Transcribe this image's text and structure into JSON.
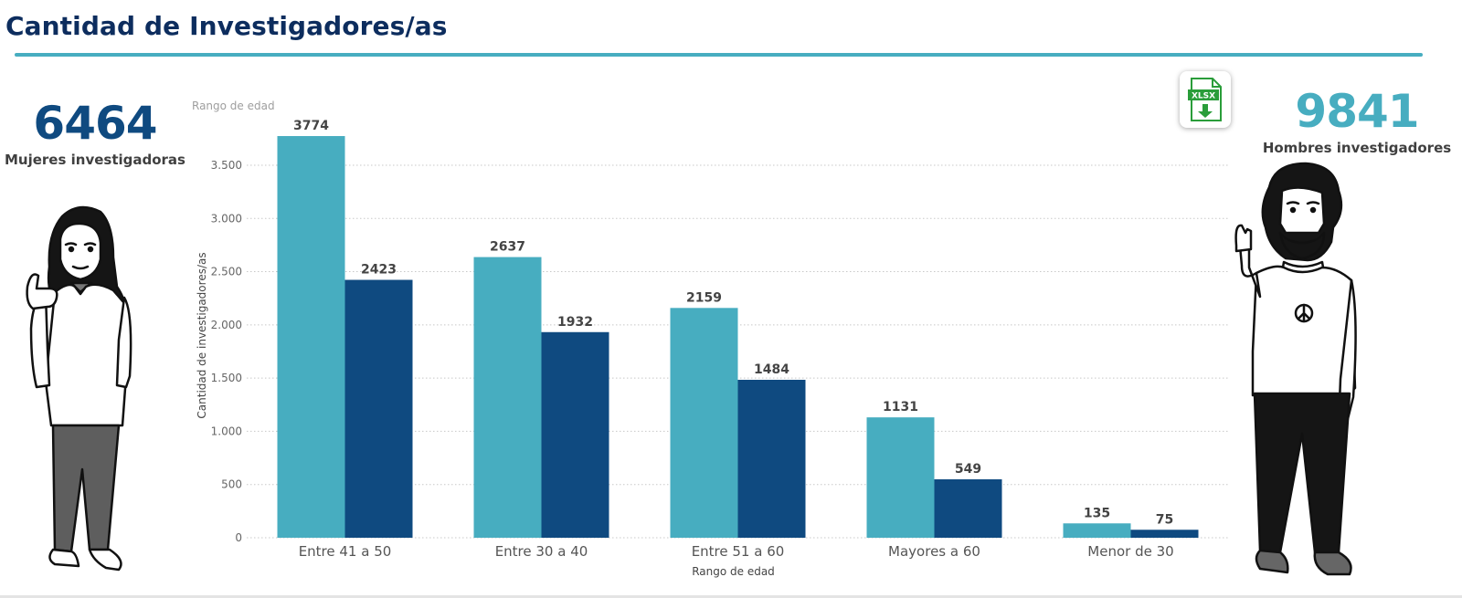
{
  "header": {
    "title": "Cantidad de Investigadores/as"
  },
  "kpis": {
    "women": {
      "value": "6464",
      "label": "Mujeres investigadoras"
    },
    "men": {
      "value": "9841",
      "label": "Hombres investigadores"
    }
  },
  "export_button": {
    "text": "XLSX",
    "icon": "xlsx-download-icon"
  },
  "chart_data": {
    "type": "bar",
    "legend_title": "Rango de edad",
    "xlabel": "Rango de edad",
    "ylabel": "Cantidad de investigadores/as",
    "categories": [
      "Entre 41 a 50",
      "Entre 30 a 40",
      "Entre 51 a 60",
      "Mayores a 60",
      "Menor de 30"
    ],
    "series": [
      {
        "color": "#47adc0",
        "values": [
          3774,
          2637,
          2159,
          1131,
          135
        ]
      },
      {
        "color": "#0f4a80",
        "values": [
          2423,
          1932,
          1484,
          549,
          75
        ]
      }
    ],
    "ylim": [
      0,
      3800
    ],
    "yticks": [
      0,
      500,
      1000,
      1500,
      2000,
      2500,
      3000,
      3500
    ],
    "ytick_labels": [
      "0",
      "500",
      "1.000",
      "1.500",
      "2.000",
      "2.500",
      "3.000",
      "3.500"
    ],
    "grid": true
  }
}
